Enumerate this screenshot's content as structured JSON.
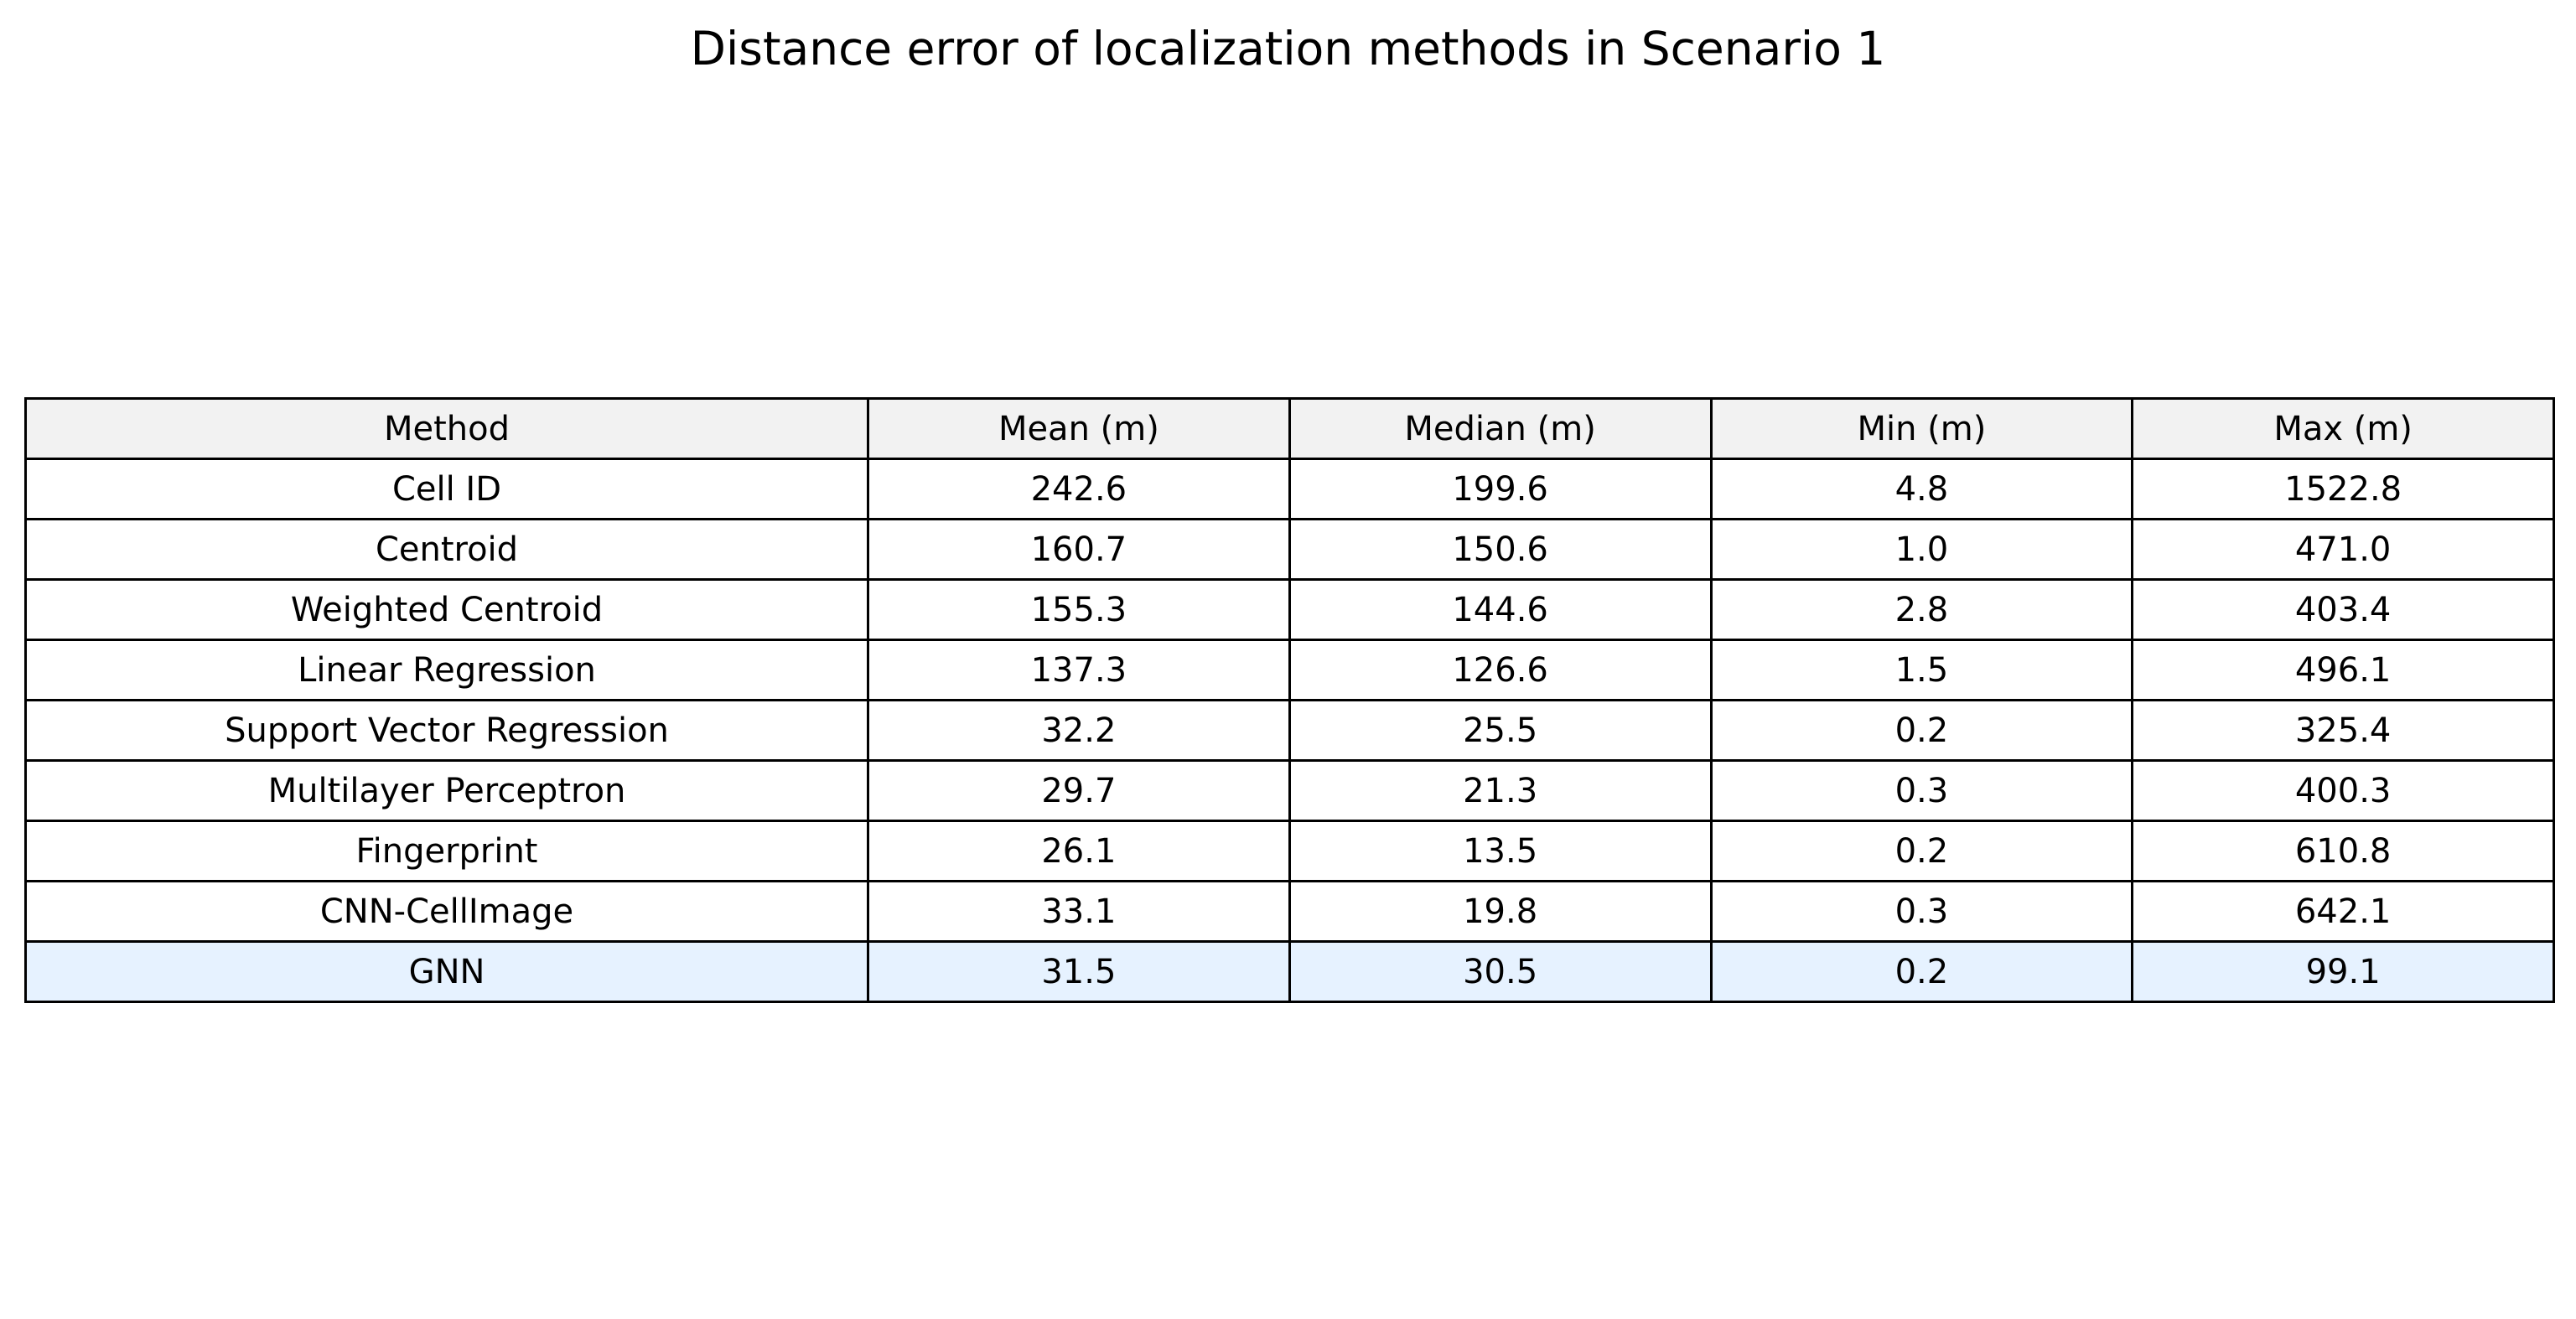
{
  "title": "Distance error of localization methods in Scenario 1",
  "colors": {
    "header_background": "#f2f2f2",
    "highlight_row_background": "#e6f2ff",
    "row_background": "#ffffff",
    "border": "#000000"
  },
  "highlighted_row": "GNN",
  "chart_data": {
    "type": "table",
    "title": "Distance error of localization methods in Scenario 1",
    "columns": [
      "Method",
      "Mean (m)",
      "Median (m)",
      "Min (m)",
      "Max (m)"
    ],
    "rows": [
      [
        "Cell ID",
        "242.6",
        "199.6",
        "4.8",
        "1522.8"
      ],
      [
        "Centroid",
        "160.7",
        "150.6",
        "1.0",
        "471.0"
      ],
      [
        "Weighted Centroid",
        "155.3",
        "144.6",
        "2.8",
        "403.4"
      ],
      [
        "Linear Regression",
        "137.3",
        "126.6",
        "1.5",
        "496.1"
      ],
      [
        "Support Vector Regression",
        "32.2",
        "25.5",
        "0.2",
        "325.4"
      ],
      [
        "Multilayer Perceptron",
        "29.7",
        "21.3",
        "0.3",
        "400.3"
      ],
      [
        "Fingerprint",
        "26.1",
        "13.5",
        "0.2",
        "610.8"
      ],
      [
        "CNN-CellImage",
        "33.1",
        "19.8",
        "0.3",
        "642.1"
      ],
      [
        "GNN",
        "31.5",
        "30.5",
        "0.2",
        "99.1"
      ]
    ]
  }
}
